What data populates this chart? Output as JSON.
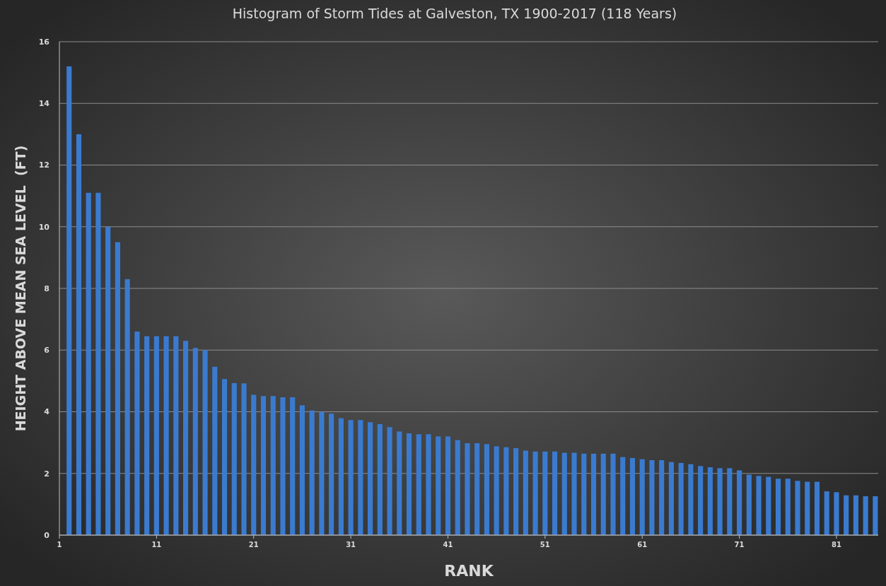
{
  "chart_data": {
    "type": "bar",
    "title": "Histogram of Storm Tides at Galveston, TX 1900-2017 (118 Years)",
    "xlabel": "RANK",
    "ylabel": "HEIGHT ABOVE MEAN SEA LEVEL  (FT)",
    "x": [
      2,
      3,
      4,
      5,
      6,
      7,
      8,
      9,
      10,
      11,
      12,
      13,
      14,
      15,
      16,
      17,
      18,
      19,
      20,
      21,
      22,
      23,
      24,
      25,
      26,
      27,
      28,
      29,
      30,
      31,
      32,
      33,
      34,
      35,
      36,
      37,
      38,
      39,
      40,
      41,
      42,
      43,
      44,
      45,
      46,
      47,
      48,
      49,
      50,
      51,
      52,
      53,
      54,
      55,
      56,
      57,
      58,
      59,
      60,
      61,
      62,
      63,
      64,
      65,
      66,
      67,
      68,
      69,
      70,
      71,
      72,
      73,
      74,
      75,
      76,
      77,
      78,
      79,
      80,
      81,
      82,
      83,
      84,
      85
    ],
    "values": [
      15.2,
      13.0,
      11.1,
      11.1,
      10.0,
      9.5,
      8.3,
      6.6,
      6.45,
      6.45,
      6.45,
      6.45,
      6.3,
      6.07,
      6.0,
      5.46,
      5.06,
      4.93,
      4.92,
      4.55,
      4.51,
      4.51,
      4.47,
      4.47,
      4.21,
      4.04,
      4.0,
      3.94,
      3.79,
      3.73,
      3.73,
      3.66,
      3.6,
      3.5,
      3.36,
      3.3,
      3.27,
      3.27,
      3.2,
      3.2,
      3.08,
      2.98,
      2.98,
      2.95,
      2.88,
      2.85,
      2.82,
      2.74,
      2.71,
      2.71,
      2.71,
      2.67,
      2.67,
      2.64,
      2.64,
      2.64,
      2.64,
      2.53,
      2.5,
      2.46,
      2.43,
      2.43,
      2.37,
      2.34,
      2.3,
      2.24,
      2.2,
      2.17,
      2.17,
      2.1,
      1.96,
      1.92,
      1.89,
      1.83,
      1.83,
      1.76,
      1.73,
      1.73,
      1.42,
      1.39,
      1.29,
      1.29,
      1.26,
      1.26
    ],
    "color": "#3a7bd0",
    "xlim": [
      1,
      85.3
    ],
    "xticks": [
      1,
      11,
      21,
      31,
      41,
      51,
      61,
      71,
      81
    ],
    "ylim": [
      0,
      16
    ],
    "yticks": [
      0,
      2,
      4,
      6,
      8,
      10,
      12,
      14,
      16
    ],
    "grid": "y"
  }
}
